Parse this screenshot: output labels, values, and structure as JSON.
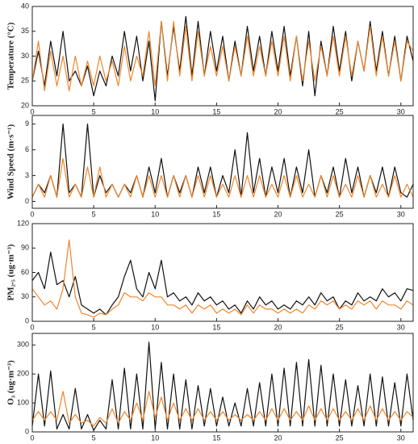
{
  "chart_data": [
    {
      "type": "line",
      "ylabel": "Temperature (°C)",
      "x": [
        0,
        0.5,
        1,
        1.5,
        2,
        2.5,
        3,
        3.5,
        4,
        4.5,
        5,
        5.5,
        6,
        6.5,
        7,
        7.5,
        8,
        8.5,
        9,
        9.5,
        10,
        10.5,
        11,
        11.5,
        12,
        12.5,
        13,
        13.5,
        14,
        14.5,
        15,
        15.5,
        16,
        16.5,
        17,
        17.5,
        18,
        18.5,
        19,
        19.5,
        20,
        20.5,
        21,
        21.5,
        22,
        22.5,
        23,
        23.5,
        24,
        24.5,
        25,
        25.5,
        26,
        26.5,
        27,
        27.5,
        28,
        28.5,
        29,
        29.5,
        30,
        30.5,
        31
      ],
      "series": [
        {
          "color": "#111111",
          "values": [
            25,
            31,
            24,
            33,
            26,
            35,
            25,
            27,
            24,
            28,
            22,
            27,
            24,
            30,
            26,
            35,
            27,
            34,
            25,
            33,
            21,
            37,
            26,
            36,
            27,
            38,
            26,
            37,
            26,
            35,
            27,
            34,
            25,
            33,
            26,
            36,
            27,
            34,
            26,
            35,
            27,
            36,
            26,
            34,
            24,
            35,
            22,
            33,
            26,
            36,
            27,
            35,
            25,
            33,
            27,
            37,
            27,
            35,
            26,
            34,
            25,
            34,
            29
          ]
        },
        {
          "color": "#f0862a",
          "values": [
            25,
            33,
            23,
            31,
            24,
            30,
            23,
            30,
            24,
            29,
            24,
            30,
            25,
            29,
            24,
            32,
            25,
            30,
            26,
            35,
            24,
            37,
            25,
            37,
            26,
            36,
            25,
            35,
            26,
            32,
            26,
            32,
            25,
            32,
            26,
            34,
            26,
            32,
            26,
            33,
            26,
            34,
            25,
            34,
            25,
            33,
            25,
            32,
            26,
            34,
            26,
            34,
            26,
            33,
            27,
            36,
            26,
            34,
            26,
            33,
            25,
            33,
            31
          ]
        }
      ],
      "xlim": [
        0,
        31
      ],
      "xticks": [
        0,
        5,
        10,
        15,
        20,
        25,
        30
      ],
      "ylim": [
        20,
        40
      ],
      "yticks": [
        20,
        25,
        30,
        35,
        40
      ]
    },
    {
      "type": "line",
      "ylabel": "Wind Speed (m·s⁻¹)",
      "x": [
        0,
        0.5,
        1,
        1.5,
        2,
        2.5,
        3,
        3.5,
        4,
        4.5,
        5,
        5.5,
        6,
        6.5,
        7,
        7.5,
        8,
        8.5,
        9,
        9.5,
        10,
        10.5,
        11,
        11.5,
        12,
        12.5,
        13,
        13.5,
        14,
        14.5,
        15,
        15.5,
        16,
        16.5,
        17,
        17.5,
        18,
        18.5,
        19,
        19.5,
        20,
        20.5,
        21,
        21.5,
        22,
        22.5,
        23,
        23.5,
        24,
        24.5,
        25,
        25.5,
        26,
        26.5,
        27,
        27.5,
        28,
        28.5,
        29,
        29.5,
        30,
        30.5,
        31
      ],
      "series": [
        {
          "color": "#111111",
          "values": [
            0.5,
            2,
            1,
            3,
            0.5,
            9,
            1,
            2,
            0.5,
            9,
            0.5,
            3,
            1,
            2,
            0.5,
            2,
            1,
            3,
            0.5,
            4,
            1,
            5,
            0.5,
            3,
            1,
            3,
            0.5,
            4,
            1,
            4,
            0.5,
            3,
            1,
            6,
            0.5,
            8,
            1,
            5,
            0.5,
            4,
            1,
            5,
            0.5,
            4,
            1,
            6,
            0.5,
            3,
            1,
            4,
            0.5,
            5,
            1,
            4,
            0.5,
            3,
            1,
            4,
            0.5,
            4,
            1,
            0.5,
            2
          ]
        },
        {
          "color": "#f0862a",
          "values": [
            0.5,
            2,
            0.5,
            3,
            0.5,
            5,
            0.5,
            2,
            0.5,
            4,
            0.5,
            4,
            0.5,
            2,
            0.5,
            2,
            0.5,
            3,
            0.5,
            3,
            0.5,
            3,
            0.5,
            3,
            0.5,
            3,
            0.5,
            3,
            0.5,
            3,
            0.5,
            2,
            0.5,
            3,
            0.5,
            3,
            0.5,
            3,
            0.5,
            2,
            0.5,
            3,
            0.5,
            3,
            0.5,
            2,
            0.5,
            3,
            0.5,
            3,
            0.5,
            2,
            0.5,
            3,
            0.5,
            3,
            0.5,
            2,
            0.5,
            3,
            0.5,
            2,
            0.5
          ]
        }
      ],
      "xlim": [
        0,
        31
      ],
      "xticks": [
        0,
        5,
        10,
        15,
        20,
        25,
        30
      ],
      "ylim": [
        -0.8,
        10
      ],
      "yticks": [
        0,
        3,
        6,
        9
      ]
    },
    {
      "type": "line",
      "ylabel": "PM₂.₅ (ug·m⁻³)",
      "x": [
        0,
        0.5,
        1,
        1.5,
        2,
        2.5,
        3,
        3.5,
        4,
        4.5,
        5,
        5.5,
        6,
        6.5,
        7,
        7.5,
        8,
        8.5,
        9,
        9.5,
        10,
        10.5,
        11,
        11.5,
        12,
        12.5,
        13,
        13.5,
        14,
        14.5,
        15,
        15.5,
        16,
        16.5,
        17,
        17.5,
        18,
        18.5,
        19,
        19.5,
        20,
        20.5,
        21,
        21.5,
        22,
        22.5,
        23,
        23.5,
        24,
        24.5,
        25,
        25.5,
        26,
        26.5,
        27,
        27.5,
        28,
        28.5,
        29,
        29.5,
        30,
        30.5,
        31
      ],
      "series": [
        {
          "color": "#111111",
          "values": [
            50,
            60,
            40,
            85,
            45,
            50,
            30,
            55,
            20,
            15,
            10,
            15,
            8,
            20,
            30,
            55,
            75,
            40,
            30,
            60,
            40,
            75,
            30,
            35,
            25,
            30,
            20,
            35,
            25,
            30,
            20,
            25,
            15,
            20,
            10,
            25,
            15,
            30,
            20,
            25,
            15,
            20,
            15,
            25,
            20,
            30,
            20,
            35,
            25,
            30,
            15,
            25,
            20,
            35,
            25,
            30,
            25,
            40,
            30,
            35,
            25,
            40,
            38
          ]
        },
        {
          "color": "#f0862a",
          "values": [
            40,
            30,
            20,
            25,
            15,
            40,
            100,
            30,
            10,
            8,
            5,
            10,
            8,
            15,
            20,
            35,
            30,
            30,
            25,
            35,
            30,
            30,
            20,
            20,
            15,
            20,
            10,
            20,
            15,
            20,
            10,
            15,
            10,
            15,
            8,
            20,
            10,
            20,
            15,
            15,
            10,
            15,
            10,
            15,
            10,
            20,
            15,
            25,
            20,
            25,
            15,
            20,
            15,
            25,
            20,
            25,
            15,
            25,
            20,
            20,
            15,
            25,
            20
          ]
        }
      ],
      "xlim": [
        0,
        31
      ],
      "xticks": [
        0,
        5,
        10,
        15,
        20,
        25,
        30
      ],
      "ylim": [
        0,
        120
      ],
      "yticks": [
        0,
        30,
        60,
        90,
        120
      ]
    },
    {
      "type": "line",
      "ylabel": "O₃ (ug·m⁻³)",
      "x": [
        0,
        0.5,
        1,
        1.5,
        2,
        2.5,
        3,
        3.5,
        4,
        4.5,
        5,
        5.5,
        6,
        6.5,
        7,
        7.5,
        8,
        8.5,
        9,
        9.5,
        10,
        10.5,
        11,
        11.5,
        12,
        12.5,
        13,
        13.5,
        14,
        14.5,
        15,
        15.5,
        16,
        16.5,
        17,
        17.5,
        18,
        18.5,
        19,
        19.5,
        20,
        20.5,
        21,
        21.5,
        22,
        22.5,
        23,
        23.5,
        24,
        24.5,
        25,
        25.5,
        26,
        26.5,
        27,
        27.5,
        28,
        28.5,
        29,
        29.5,
        30,
        30.5,
        31
      ],
      "series": [
        {
          "color": "#111111",
          "values": [
            20,
            200,
            20,
            210,
            10,
            60,
            10,
            150,
            10,
            60,
            5,
            40,
            10,
            180,
            10,
            220,
            10,
            200,
            10,
            310,
            10,
            240,
            10,
            200,
            10,
            180,
            10,
            160,
            20,
            150,
            20,
            120,
            20,
            100,
            20,
            150,
            20,
            170,
            20,
            200,
            20,
            220,
            20,
            240,
            20,
            250,
            20,
            230,
            20,
            200,
            20,
            180,
            20,
            160,
            20,
            200,
            20,
            190,
            20,
            170,
            20,
            200,
            40
          ]
        },
        {
          "color": "#f0862a",
          "values": [
            40,
            70,
            40,
            70,
            40,
            140,
            30,
            60,
            30,
            40,
            20,
            50,
            30,
            80,
            30,
            70,
            40,
            100,
            40,
            140,
            50,
            120,
            40,
            100,
            40,
            80,
            40,
            80,
            40,
            70,
            40,
            70,
            40,
            60,
            40,
            60,
            40,
            70,
            40,
            80,
            40,
            80,
            40,
            70,
            40,
            90,
            40,
            80,
            40,
            80,
            40,
            70,
            40,
            80,
            40,
            90,
            40,
            80,
            40,
            70,
            40,
            70,
            50
          ]
        }
      ],
      "xlim": [
        0,
        31
      ],
      "xticks": [
        0,
        5,
        10,
        15,
        20,
        25,
        30
      ],
      "ylim": [
        0,
        340
      ],
      "yticks": [
        0,
        100,
        200,
        300
      ]
    }
  ]
}
